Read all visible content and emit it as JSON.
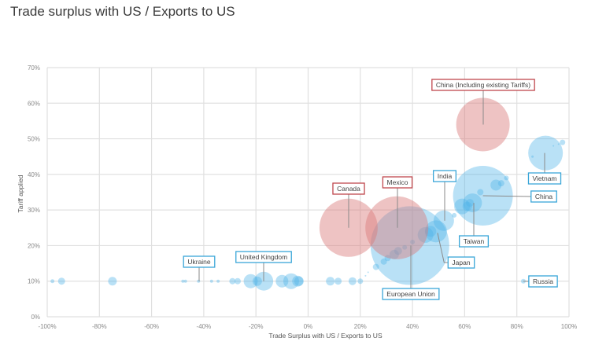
{
  "title": "Trade surplus with US / Exports to US",
  "colors": {
    "blue_fill": "#4fb3e8",
    "red_fill": "#d97a7a",
    "blue_border": "#3aa6d8",
    "red_border": "#c0474d",
    "grid": "#e0e0e0",
    "leader": "#8a8a8a"
  },
  "chart_data": {
    "type": "scatter",
    "title": "Trade surplus with US / Exports to US",
    "xlabel": "Trade Surplus with US / Exports to US",
    "ylabel": "Tariff applied",
    "xlim": [
      -100,
      100
    ],
    "ylim": [
      0,
      70
    ],
    "xticks": [
      "-100%",
      "-80%",
      "-60%",
      "-40%",
      "-20%",
      "0%",
      "20%",
      "40%",
      "60%",
      "80%",
      "100%"
    ],
    "xtick_values": [
      -100,
      -80,
      -60,
      -40,
      -20,
      0,
      20,
      40,
      60,
      80,
      100
    ],
    "yticks": [
      "0%",
      "10%",
      "20%",
      "30%",
      "40%",
      "50%",
      "60%",
      "70%"
    ],
    "ytick_values": [
      0,
      10,
      20,
      30,
      40,
      50,
      60,
      70
    ],
    "grid": true,
    "bubble_size_unit": "relative exports to US",
    "series": [
      {
        "name": "labeled-red",
        "color": "red",
        "points": [
          {
            "label": "China (Including existing Tariffs)",
            "x": 67,
            "y": 54,
            "size": 34
          },
          {
            "label": "Canada",
            "x": 15.5,
            "y": 25,
            "size": 37
          },
          {
            "label": "Mexico",
            "x": 34,
            "y": 25,
            "size": 40
          }
        ]
      },
      {
        "name": "labeled-blue",
        "color": "blue",
        "points": [
          {
            "label": "European Union",
            "x": 39,
            "y": 20,
            "size": 50
          },
          {
            "label": "China",
            "x": 67,
            "y": 34,
            "size": 38
          },
          {
            "label": "Vietnam",
            "x": 91,
            "y": 46,
            "size": 22
          },
          {
            "label": "Taiwan",
            "x": 63,
            "y": 32,
            "size": 12
          },
          {
            "label": "India",
            "x": 52,
            "y": 27,
            "size": 13
          },
          {
            "label": "Japan",
            "x": 49,
            "y": 24,
            "size": 14
          },
          {
            "label": "United Kingdom",
            "x": -17,
            "y": 10,
            "size": 12
          },
          {
            "label": "Ukraine",
            "x": -42,
            "y": 10,
            "size": 2
          },
          {
            "label": "Russia",
            "x": 82.5,
            "y": 10,
            "size": 3
          }
        ]
      },
      {
        "name": "unlabeled-blue",
        "color": "blue",
        "points": [
          {
            "x": -98,
            "y": 10,
            "size": 2.5
          },
          {
            "x": -94.5,
            "y": 10,
            "size": 4.5
          },
          {
            "x": -75,
            "y": 10,
            "size": 5.5
          },
          {
            "x": -48,
            "y": 10,
            "size": 2
          },
          {
            "x": -47,
            "y": 10,
            "size": 2
          },
          {
            "x": -37,
            "y": 10,
            "size": 2
          },
          {
            "x": -34.5,
            "y": 10,
            "size": 2
          },
          {
            "x": -29,
            "y": 10,
            "size": 4
          },
          {
            "x": -27,
            "y": 10,
            "size": 4
          },
          {
            "x": -22,
            "y": 10,
            "size": 9
          },
          {
            "x": -19.5,
            "y": 10,
            "size": 6
          },
          {
            "x": -10,
            "y": 10,
            "size": 8
          },
          {
            "x": -6.5,
            "y": 10,
            "size": 10
          },
          {
            "x": -4,
            "y": 10,
            "size": 7
          },
          {
            "x": -3.5,
            "y": 10,
            "size": 6
          },
          {
            "x": 8.5,
            "y": 10,
            "size": 5.5
          },
          {
            "x": 11.5,
            "y": 10,
            "size": 4.5
          },
          {
            "x": 17,
            "y": 10,
            "size": 5
          },
          {
            "x": 20,
            "y": 10,
            "size": 3.5
          },
          {
            "x": 22,
            "y": 11.5,
            "size": 1
          },
          {
            "x": 23,
            "y": 12.5,
            "size": 1
          },
          {
            "x": 26,
            "y": 14,
            "size": 4
          },
          {
            "x": 29,
            "y": 15.5,
            "size": 4
          },
          {
            "x": 30.5,
            "y": 16.5,
            "size": 4
          },
          {
            "x": 33,
            "y": 17.5,
            "size": 6
          },
          {
            "x": 34.5,
            "y": 18.5,
            "size": 5
          },
          {
            "x": 37,
            "y": 19.5,
            "size": 3
          },
          {
            "x": 40,
            "y": 21,
            "size": 3
          },
          {
            "x": 45,
            "y": 23,
            "size": 10
          },
          {
            "x": 47,
            "y": 24,
            "size": 7
          },
          {
            "x": 56,
            "y": 28.5,
            "size": 3
          },
          {
            "x": 59,
            "y": 31,
            "size": 10
          },
          {
            "x": 61,
            "y": 31,
            "size": 6
          },
          {
            "x": 62,
            "y": 32,
            "size": 5
          },
          {
            "x": 66,
            "y": 35,
            "size": 4
          },
          {
            "x": 72,
            "y": 37,
            "size": 7
          },
          {
            "x": 74,
            "y": 37.5,
            "size": 4
          },
          {
            "x": 76,
            "y": 39,
            "size": 3
          },
          {
            "x": 86,
            "y": 45,
            "size": 1.5
          },
          {
            "x": 94,
            "y": 48,
            "size": 1
          },
          {
            "x": 96,
            "y": 48.5,
            "size": 1
          },
          {
            "x": 97.5,
            "y": 49,
            "size": 3.5
          }
        ]
      }
    ],
    "annotations": [
      {
        "text": "China (Including existing Tariffs)",
        "color": "red",
        "points_to": "China (Including existing Tariffs)"
      },
      {
        "text": "Canada",
        "color": "red",
        "points_to": "Canada"
      },
      {
        "text": "Mexico",
        "color": "red",
        "points_to": "Mexico"
      },
      {
        "text": "India",
        "color": "blue",
        "points_to": "India"
      },
      {
        "text": "Vietnam",
        "color": "blue",
        "points_to": "Vietnam"
      },
      {
        "text": "China",
        "color": "blue",
        "points_to": "China"
      },
      {
        "text": "Taiwan",
        "color": "blue",
        "points_to": "Taiwan"
      },
      {
        "text": "Japan",
        "color": "blue",
        "points_to": "Japan"
      },
      {
        "text": "European Union",
        "color": "blue",
        "points_to": "European Union"
      },
      {
        "text": "United Kingdom",
        "color": "blue",
        "points_to": "United Kingdom"
      },
      {
        "text": "Ukraine",
        "color": "blue",
        "points_to": "Ukraine"
      },
      {
        "text": "Russia",
        "color": "blue",
        "points_to": "Russia"
      }
    ]
  }
}
